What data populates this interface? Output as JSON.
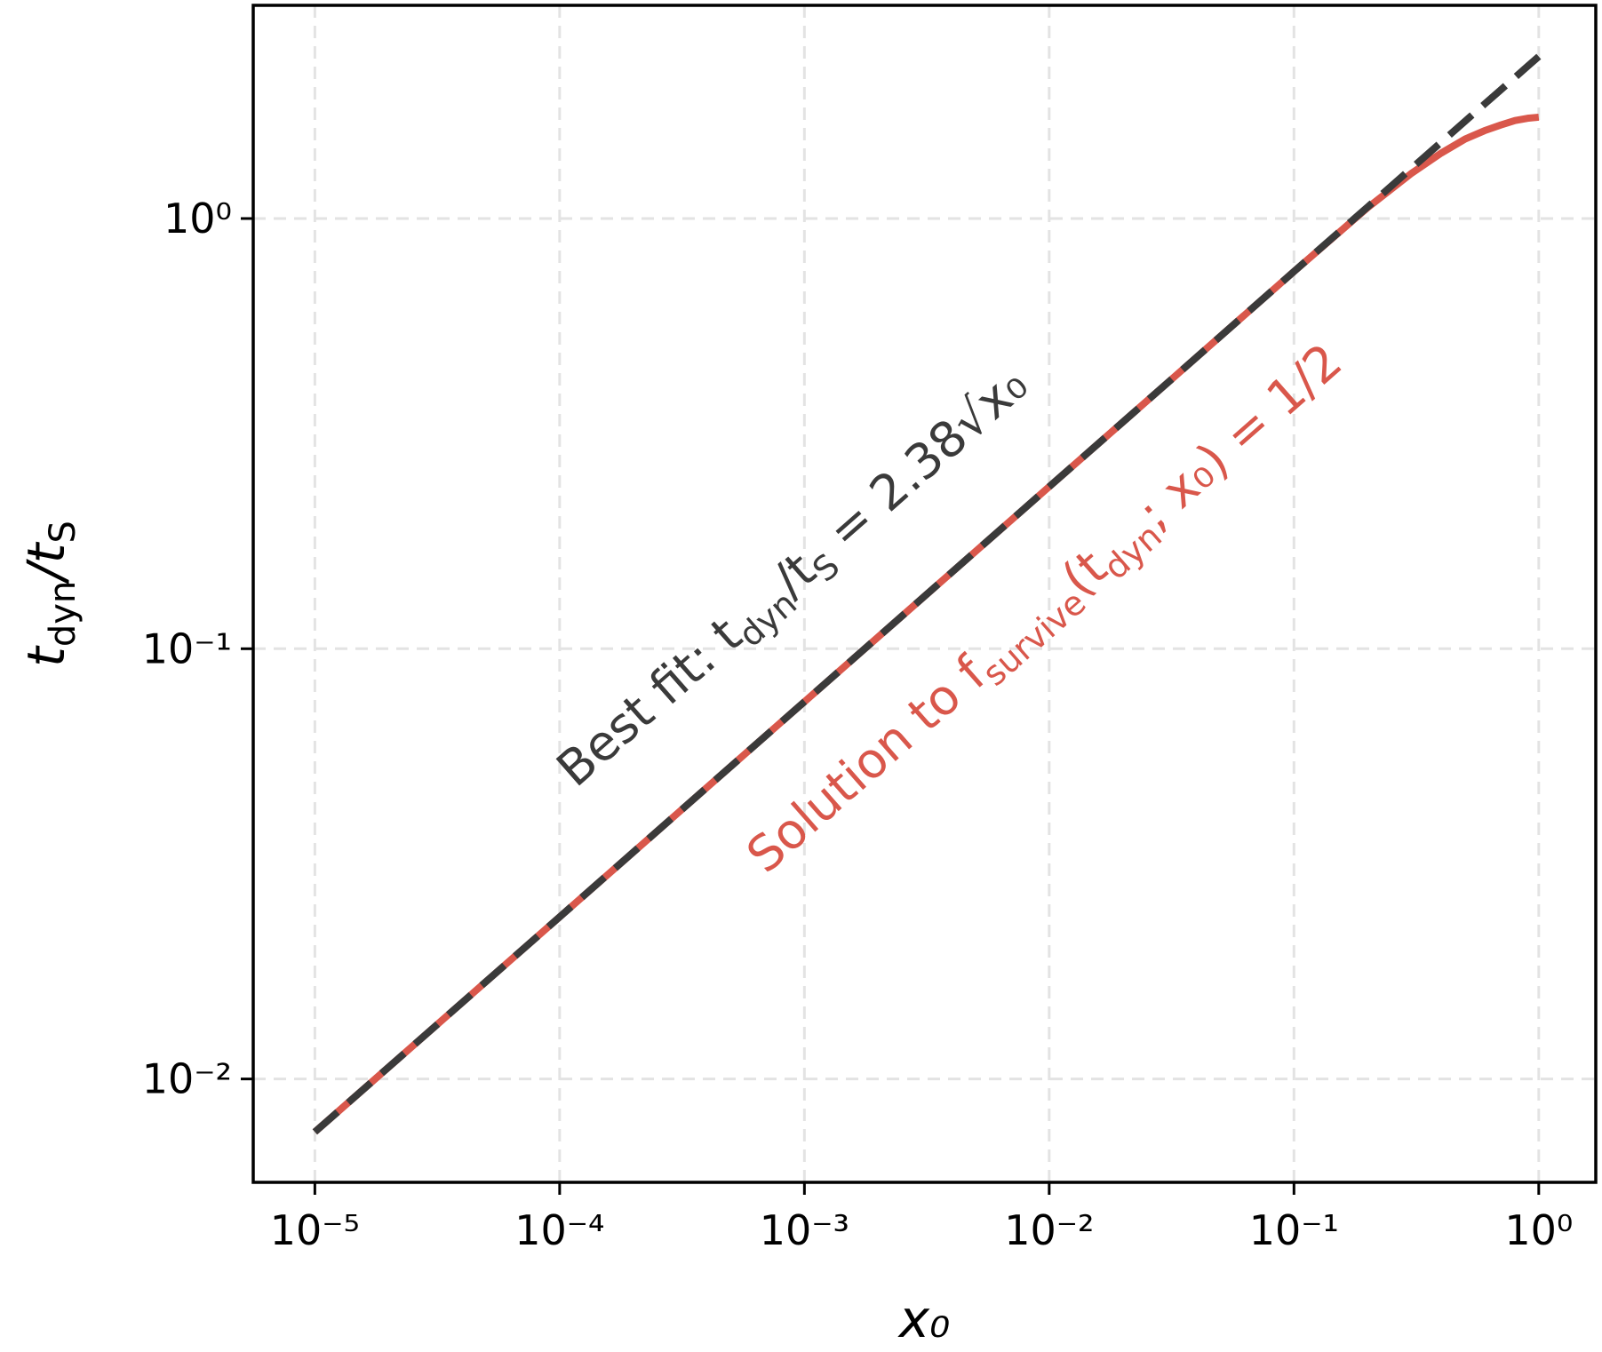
{
  "chart_data": {
    "type": "line",
    "xlabel": "x₀",
    "ylabel": [
      "t",
      "dyn",
      "/t",
      "S"
    ],
    "x": [
      1e-05,
      0.0001,
      0.001,
      0.01,
      0.03,
      0.1,
      0.2,
      0.3,
      0.4,
      0.5,
      0.6,
      0.7,
      0.8,
      0.9,
      1.0
    ],
    "series": [
      {
        "color": "#d9574b",
        "dash": false,
        "values": [
          0.00753,
          0.0238,
          0.0753,
          0.238,
          0.412,
          0.753,
          1.06,
          1.27,
          1.42,
          1.53,
          1.6,
          1.65,
          1.69,
          1.71,
          1.72
        ]
      },
      {
        "color": "#3a3a3a",
        "dash": true,
        "values": [
          0.00753,
          0.0238,
          0.0753,
          0.238,
          0.412,
          0.753,
          1.064,
          1.304,
          1.505,
          1.683,
          1.844,
          1.991,
          2.129,
          2.258,
          2.38
        ]
      }
    ],
    "annotations": [
      {
        "parts": [
          "Best fit: t",
          "dyn",
          "/t",
          "S",
          " = 2.38√x₀"
        ],
        "color": "#3a3a3a"
      },
      {
        "parts": [
          "Solution to f",
          "survive",
          "(t",
          "dyn",
          "; x₀) = 1/2"
        ],
        "color": "#d9574b"
      }
    ],
    "xscale": "log",
    "yscale": "log",
    "xlim": [
      5.6e-06,
      1.71
    ],
    "ylim": [
      0.00575,
      3.13
    ],
    "xticks": [
      {
        "value": 1e-05,
        "label": "10⁻⁵"
      },
      {
        "value": 0.0001,
        "label": "10⁻⁴"
      },
      {
        "value": 0.001,
        "label": "10⁻³"
      },
      {
        "value": 0.01,
        "label": "10⁻²"
      },
      {
        "value": 0.1,
        "label": "10⁻¹"
      },
      {
        "value": 1,
        "label": "10⁰"
      }
    ],
    "yticks": [
      {
        "value": 0.01,
        "label": "10⁻²"
      },
      {
        "value": 0.1,
        "label": "10⁻¹"
      },
      {
        "value": 1,
        "label": "10⁰"
      }
    ],
    "grid": true
  }
}
